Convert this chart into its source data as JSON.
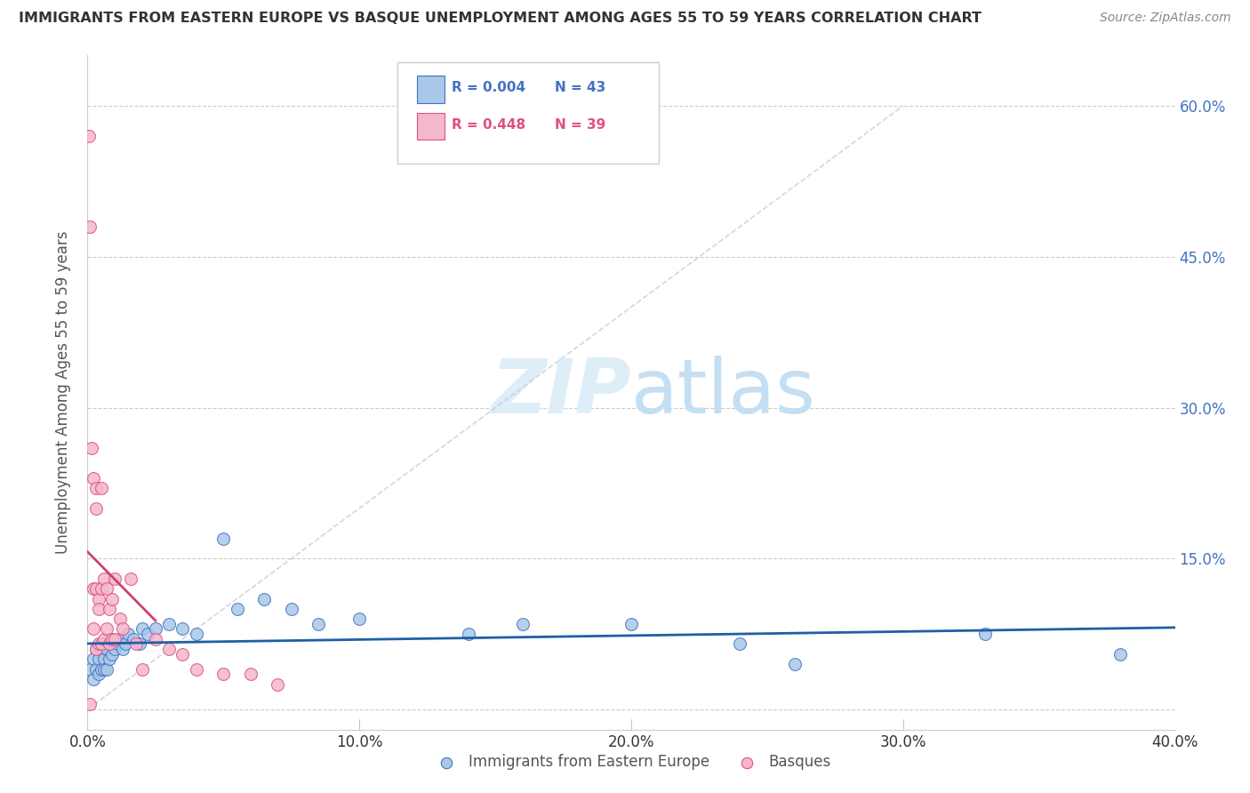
{
  "title": "IMMIGRANTS FROM EASTERN EUROPE VS BASQUE UNEMPLOYMENT AMONG AGES 55 TO 59 YEARS CORRELATION CHART",
  "source": "Source: ZipAtlas.com",
  "ylabel": "Unemployment Among Ages 55 to 59 years",
  "xlabel_blue": "Immigrants from Eastern Europe",
  "xlabel_pink": "Basques",
  "xlim": [
    0.0,
    0.4
  ],
  "ylim": [
    -0.02,
    0.65
  ],
  "yticks": [
    0.0,
    0.15,
    0.3,
    0.45,
    0.6
  ],
  "xticks": [
    0.0,
    0.1,
    0.2,
    0.3,
    0.4
  ],
  "ytick_labels_right": [
    "",
    "15.0%",
    "30.0%",
    "45.0%",
    "60.0%"
  ],
  "xtick_labels": [
    "0.0%",
    "10.0%",
    "20.0%",
    "30.0%",
    "40.0%"
  ],
  "blue_color": "#a8c8e8",
  "blue_edge_color": "#4472c4",
  "pink_color": "#f4b8cc",
  "pink_edge_color": "#e05080",
  "trendline_blue_color": "#1f5fa6",
  "trendline_pink_color": "#d04070",
  "trendline_dash_color": "#cccccc",
  "right_axis_color": "#4472c4",
  "watermark_color": "#ddeef8",
  "blue_points_x": [
    0.001,
    0.002,
    0.002,
    0.003,
    0.003,
    0.004,
    0.004,
    0.005,
    0.005,
    0.006,
    0.006,
    0.007,
    0.007,
    0.008,
    0.008,
    0.009,
    0.01,
    0.011,
    0.012,
    0.013,
    0.014,
    0.015,
    0.017,
    0.019,
    0.02,
    0.022,
    0.025,
    0.03,
    0.035,
    0.04,
    0.05,
    0.055,
    0.065,
    0.075,
    0.085,
    0.1,
    0.14,
    0.16,
    0.2,
    0.24,
    0.26,
    0.33,
    0.38
  ],
  "blue_points_y": [
    0.04,
    0.05,
    0.03,
    0.04,
    0.06,
    0.05,
    0.035,
    0.04,
    0.06,
    0.05,
    0.04,
    0.06,
    0.04,
    0.05,
    0.07,
    0.055,
    0.06,
    0.065,
    0.07,
    0.06,
    0.065,
    0.075,
    0.07,
    0.065,
    0.08,
    0.075,
    0.08,
    0.085,
    0.08,
    0.075,
    0.17,
    0.1,
    0.11,
    0.1,
    0.085,
    0.09,
    0.075,
    0.085,
    0.085,
    0.065,
    0.045,
    0.075,
    0.055
  ],
  "pink_points_x": [
    0.0005,
    0.001,
    0.001,
    0.0015,
    0.002,
    0.002,
    0.002,
    0.003,
    0.003,
    0.003,
    0.003,
    0.004,
    0.004,
    0.004,
    0.005,
    0.005,
    0.005,
    0.006,
    0.006,
    0.007,
    0.007,
    0.008,
    0.008,
    0.009,
    0.009,
    0.01,
    0.01,
    0.012,
    0.013,
    0.016,
    0.018,
    0.02,
    0.025,
    0.03,
    0.035,
    0.04,
    0.05,
    0.06,
    0.07
  ],
  "pink_points_y": [
    0.57,
    0.48,
    0.005,
    0.26,
    0.23,
    0.12,
    0.08,
    0.22,
    0.2,
    0.12,
    0.06,
    0.11,
    0.1,
    0.065,
    0.22,
    0.12,
    0.065,
    0.13,
    0.07,
    0.12,
    0.08,
    0.1,
    0.065,
    0.11,
    0.07,
    0.13,
    0.07,
    0.09,
    0.08,
    0.13,
    0.065,
    0.04,
    0.07,
    0.06,
    0.055,
    0.04,
    0.035,
    0.035,
    0.025
  ],
  "blue_trendline_slope": 0.03,
  "blue_trendline_intercept": 0.058,
  "pink_trendline_slope": 25.0,
  "pink_trendline_intercept": 0.01,
  "gray_dash_slope": 2.0,
  "gray_dash_intercept": 0.0
}
